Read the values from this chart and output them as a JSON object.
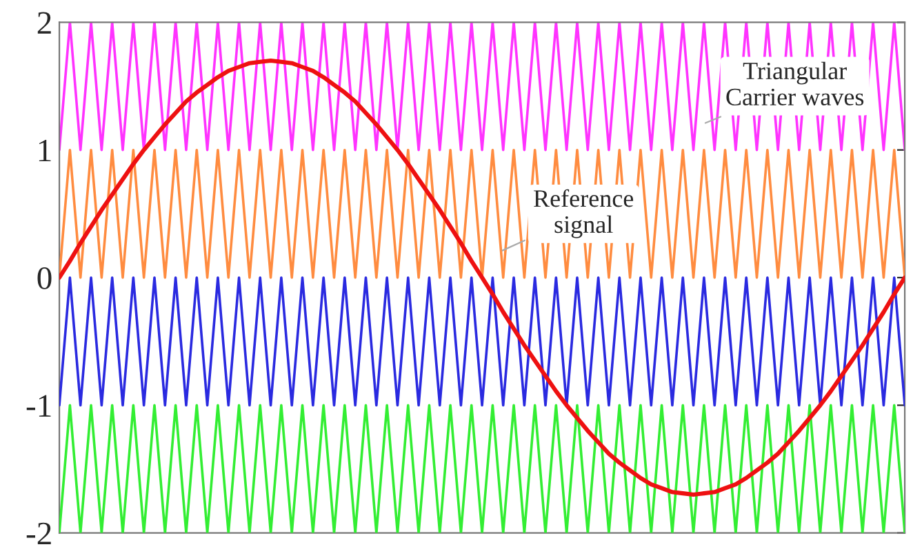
{
  "chart_data": {
    "type": "line",
    "categories": [
      null,
      null,
      null,
      null,
      null,
      null,
      null,
      null,
      null,
      null,
      null,
      null,
      null,
      null,
      null,
      null,
      null,
      null,
      null,
      null,
      null,
      null,
      null,
      null,
      null,
      null,
      null,
      null,
      null,
      null,
      null,
      null,
      null,
      null,
      null,
      null,
      null,
      null,
      null,
      null,
      null,
      null,
      null,
      null,
      null,
      null,
      null,
      null,
      null,
      null,
      null,
      null,
      null,
      null,
      null,
      null,
      null,
      null,
      null,
      null,
      null,
      null,
      null,
      null,
      null,
      null,
      null,
      null,
      null,
      null,
      null,
      null,
      null,
      null,
      null,
      null,
      null,
      null,
      null,
      null,
      null
    ],
    "series": [
      {
        "color": "#ff33ff",
        "values": [
          1,
          2,
          1,
          2,
          1,
          2,
          1,
          2,
          1,
          2,
          1,
          2,
          1,
          2,
          1,
          2,
          1,
          2,
          1,
          2,
          1,
          2,
          1,
          2,
          1,
          2,
          1,
          2,
          1,
          2,
          1,
          2,
          1,
          2,
          1,
          2,
          1,
          2,
          1,
          2,
          1,
          2,
          1,
          2,
          1,
          2,
          1,
          2,
          1,
          2,
          1,
          2,
          1,
          2,
          1,
          2,
          1,
          2,
          1,
          2,
          1,
          2,
          1,
          2,
          1,
          2,
          1,
          2,
          1,
          2,
          1,
          2,
          1,
          2,
          1,
          2,
          1,
          2,
          1,
          2,
          1
        ]
      },
      {
        "color": "#ff8c40",
        "values": [
          0,
          1,
          0,
          1,
          0,
          1,
          0,
          1,
          0,
          1,
          0,
          1,
          0,
          1,
          0,
          1,
          0,
          1,
          0,
          1,
          0,
          1,
          0,
          1,
          0,
          1,
          0,
          1,
          0,
          1,
          0,
          1,
          0,
          1,
          0,
          1,
          0,
          1,
          0,
          1,
          0,
          1,
          0,
          1,
          0,
          1,
          0,
          1,
          0,
          1,
          0,
          1,
          0,
          1,
          0,
          1,
          0,
          1,
          0,
          1,
          0,
          1,
          0,
          1,
          0,
          1,
          0,
          1,
          0,
          1,
          0,
          1,
          0,
          1,
          0,
          1,
          0,
          1,
          0,
          1,
          0
        ]
      },
      {
        "color": "#2a2ae0",
        "values": [
          -1,
          0,
          -1,
          0,
          -1,
          0,
          -1,
          0,
          -1,
          0,
          -1,
          0,
          -1,
          0,
          -1,
          0,
          -1,
          0,
          -1,
          0,
          -1,
          0,
          -1,
          0,
          -1,
          0,
          -1,
          0,
          -1,
          0,
          -1,
          0,
          -1,
          0,
          -1,
          0,
          -1,
          0,
          -1,
          0,
          -1,
          0,
          -1,
          0,
          -1,
          0,
          -1,
          0,
          -1,
          0,
          -1,
          0,
          -1,
          0,
          -1,
          0,
          -1,
          0,
          -1,
          0,
          -1,
          0,
          -1,
          0,
          -1,
          0,
          -1,
          0,
          -1,
          0,
          -1,
          0,
          -1,
          0,
          -1,
          0,
          -1,
          0,
          -1,
          0,
          -1
        ]
      },
      {
        "color": "#33ee33",
        "values": [
          -2,
          -1,
          -2,
          -1,
          -2,
          -1,
          -2,
          -1,
          -2,
          -1,
          -2,
          -1,
          -2,
          -1,
          -2,
          -1,
          -2,
          -1,
          -2,
          -1,
          -2,
          -1,
          -2,
          -1,
          -2,
          -1,
          -2,
          -1,
          -2,
          -1,
          -2,
          -1,
          -2,
          -1,
          -2,
          -1,
          -2,
          -1,
          -2,
          -1,
          -2,
          -1,
          -2,
          -1,
          -2,
          -1,
          -2,
          -1,
          -2,
          -1,
          -2,
          -1,
          -2,
          -1,
          -2,
          -1,
          -2,
          -1,
          -2,
          -1,
          -2,
          -1,
          -2,
          -1,
          -2,
          -1,
          -2,
          -1,
          -2,
          -1,
          -2,
          -1,
          -2,
          -1,
          -2,
          -1,
          -2,
          -1,
          -2,
          -1,
          -2
        ]
      },
      {
        "color": "#ee1111",
        "values": [
          0,
          0.13,
          0.27,
          0.4,
          0.53,
          0.65,
          0.77,
          0.89,
          1.0,
          1.1,
          1.2,
          1.29,
          1.38,
          1.45,
          1.51,
          1.57,
          1.62,
          1.65,
          1.68,
          1.69,
          1.7,
          1.69,
          1.68,
          1.65,
          1.62,
          1.57,
          1.51,
          1.45,
          1.38,
          1.29,
          1.2,
          1.1,
          1.0,
          0.89,
          0.77,
          0.65,
          0.53,
          0.4,
          0.27,
          0.13,
          0,
          -0.13,
          -0.27,
          -0.4,
          -0.53,
          -0.65,
          -0.77,
          -0.89,
          -1.0,
          -1.1,
          -1.2,
          -1.29,
          -1.38,
          -1.45,
          -1.51,
          -1.57,
          -1.62,
          -1.65,
          -1.68,
          -1.69,
          -1.7,
          -1.69,
          -1.68,
          -1.65,
          -1.62,
          -1.57,
          -1.51,
          -1.45,
          -1.38,
          -1.29,
          -1.2,
          -1.1,
          -1.0,
          -0.89,
          -0.77,
          -0.65,
          -0.53,
          -0.4,
          -0.27,
          -0.13,
          0
        ]
      }
    ],
    "ylim": [
      -2,
      2
    ],
    "yticks": [
      -2,
      -1,
      0,
      1,
      2
    ],
    "tick_labels": "y",
    "grid": false,
    "legend": false,
    "line_style": "solid",
    "annotations": [
      "Triangular\nCarrier waves",
      "Reference\nsignal"
    ]
  }
}
